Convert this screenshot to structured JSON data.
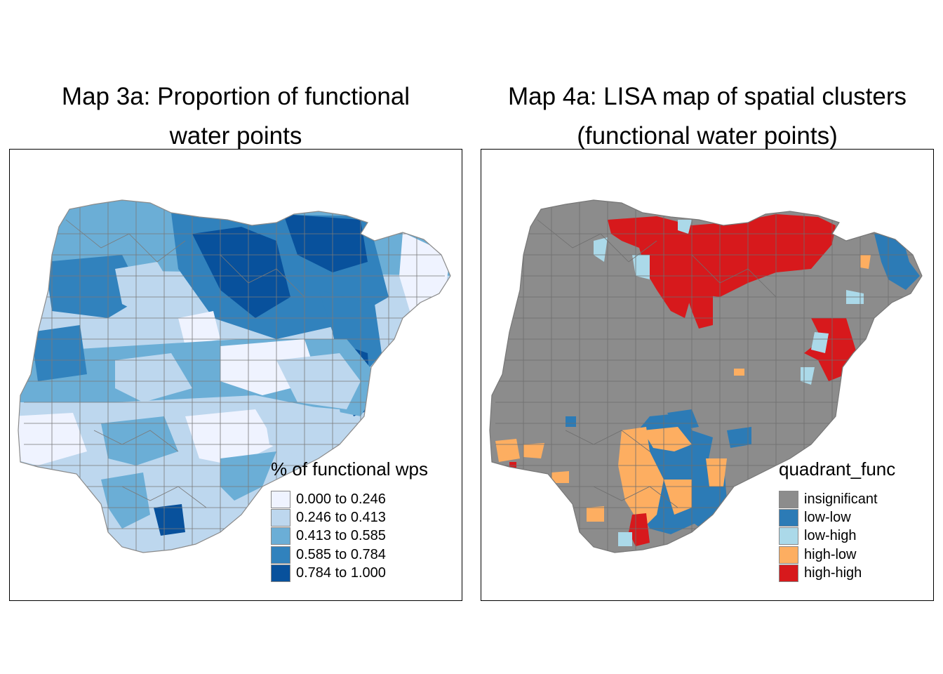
{
  "maps": [
    {
      "title_lines": [
        "Map 3a: Proportion of functional",
        "water points"
      ],
      "legend": {
        "title": "% of functional wps",
        "items": [
          {
            "label": "0.000 to 0.246",
            "color": "#eff3ff"
          },
          {
            "label": "0.246 to 0.413",
            "color": "#bdd7ee"
          },
          {
            "label": "0.413 to 0.585",
            "color": "#6baed6"
          },
          {
            "label": "0.585 to 0.784",
            "color": "#3182bd"
          },
          {
            "label": "0.784 to 1.000",
            "color": "#08519c"
          }
        ]
      }
    },
    {
      "title_lines": [
        "Map 4a: LISA map of spatial clusters",
        "(functional water points)"
      ],
      "legend": {
        "title": "quadrant_func",
        "items": [
          {
            "label": "insignificant",
            "color": "#8c8c8c"
          },
          {
            "label": "low-low",
            "color": "#2c7bb6"
          },
          {
            "label": "low-high",
            "color": "#abd9e9"
          },
          {
            "label": "high-low",
            "color": "#fdae61"
          },
          {
            "label": "high-high",
            "color": "#d7191c"
          }
        ]
      }
    }
  ]
}
